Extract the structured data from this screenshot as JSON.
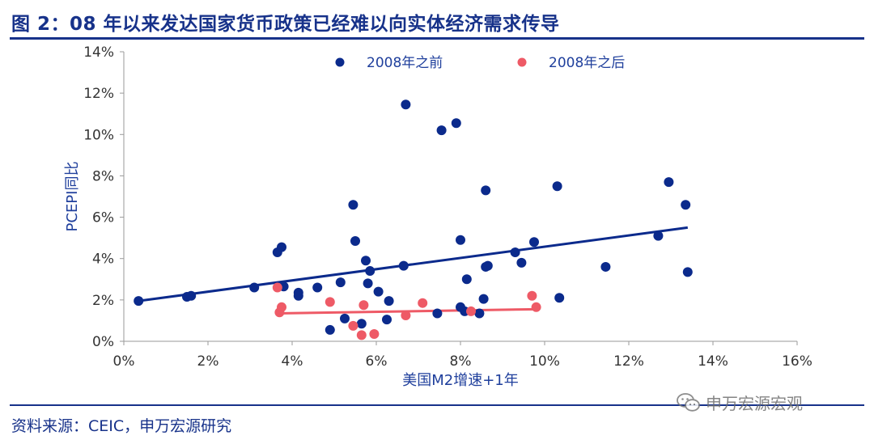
{
  "title": "图 2：08 年以来发达国家货币政策已经难以向实体经济需求传导",
  "source": "资料来源：CEIC，申万宏源研究",
  "watermark": {
    "text": "申万宏源宏观",
    "icon": "wechat-icon"
  },
  "colors": {
    "before": "#0b2a8c",
    "after": "#ee5a66",
    "title": "#17328a"
  },
  "chart_data": {
    "type": "scatter",
    "title": "",
    "xlabel": "美国M2增速+1年",
    "ylabel": "PCEPI同比",
    "xlim": [
      0,
      16
    ],
    "ylim": [
      0,
      14
    ],
    "x_ticks": [
      "0%",
      "2%",
      "4%",
      "6%",
      "8%",
      "10%",
      "12%",
      "14%",
      "16%"
    ],
    "y_ticks": [
      "0%",
      "2%",
      "4%",
      "6%",
      "8%",
      "10%",
      "12%",
      "14%"
    ],
    "grid": false,
    "legend_position": "top",
    "series": [
      {
        "name": "2008年之前",
        "color": "#0b2a8c",
        "points": [
          [
            0.35,
            1.95
          ],
          [
            1.5,
            2.15
          ],
          [
            1.6,
            2.2
          ],
          [
            3.1,
            2.6
          ],
          [
            3.65,
            4.3
          ],
          [
            3.75,
            4.55
          ],
          [
            3.8,
            2.65
          ],
          [
            4.15,
            2.35
          ],
          [
            4.15,
            2.2
          ],
          [
            4.6,
            2.6
          ],
          [
            4.9,
            0.55
          ],
          [
            5.15,
            2.85
          ],
          [
            5.25,
            1.1
          ],
          [
            5.45,
            6.6
          ],
          [
            5.5,
            4.85
          ],
          [
            5.65,
            0.85
          ],
          [
            5.75,
            3.9
          ],
          [
            5.8,
            2.8
          ],
          [
            5.85,
            3.4
          ],
          [
            6.05,
            2.4
          ],
          [
            6.25,
            1.05
          ],
          [
            6.3,
            1.95
          ],
          [
            6.65,
            3.65
          ],
          [
            6.7,
            11.45
          ],
          [
            7.45,
            1.35
          ],
          [
            7.55,
            10.2
          ],
          [
            7.9,
            10.55
          ],
          [
            8.0,
            1.65
          ],
          [
            8.0,
            4.9
          ],
          [
            8.1,
            1.45
          ],
          [
            8.15,
            3.0
          ],
          [
            8.45,
            1.35
          ],
          [
            8.55,
            2.05
          ],
          [
            8.6,
            7.3
          ],
          [
            8.6,
            3.6
          ],
          [
            8.65,
            3.65
          ],
          [
            9.3,
            4.3
          ],
          [
            9.45,
            3.8
          ],
          [
            9.75,
            4.8
          ],
          [
            10.3,
            7.5
          ],
          [
            10.35,
            2.1
          ],
          [
            11.45,
            3.6
          ],
          [
            12.7,
            5.1
          ],
          [
            12.95,
            7.7
          ],
          [
            13.35,
            6.6
          ],
          [
            13.4,
            3.35
          ]
        ],
        "trendline": {
          "x": [
            0.35,
            13.4
          ],
          "y": [
            1.95,
            5.5
          ]
        }
      },
      {
        "name": "2008年之后",
        "color": "#ee5a66",
        "points": [
          [
            3.65,
            2.6
          ],
          [
            3.7,
            1.4
          ],
          [
            3.75,
            1.65
          ],
          [
            4.9,
            1.9
          ],
          [
            5.45,
            0.75
          ],
          [
            5.65,
            0.3
          ],
          [
            5.7,
            1.75
          ],
          [
            5.95,
            0.35
          ],
          [
            6.7,
            1.25
          ],
          [
            7.1,
            1.85
          ],
          [
            8.25,
            1.45
          ],
          [
            9.7,
            2.2
          ],
          [
            9.8,
            1.65
          ]
        ],
        "trendline": {
          "x": [
            3.65,
            9.8
          ],
          "y": [
            1.35,
            1.55
          ]
        }
      }
    ]
  }
}
